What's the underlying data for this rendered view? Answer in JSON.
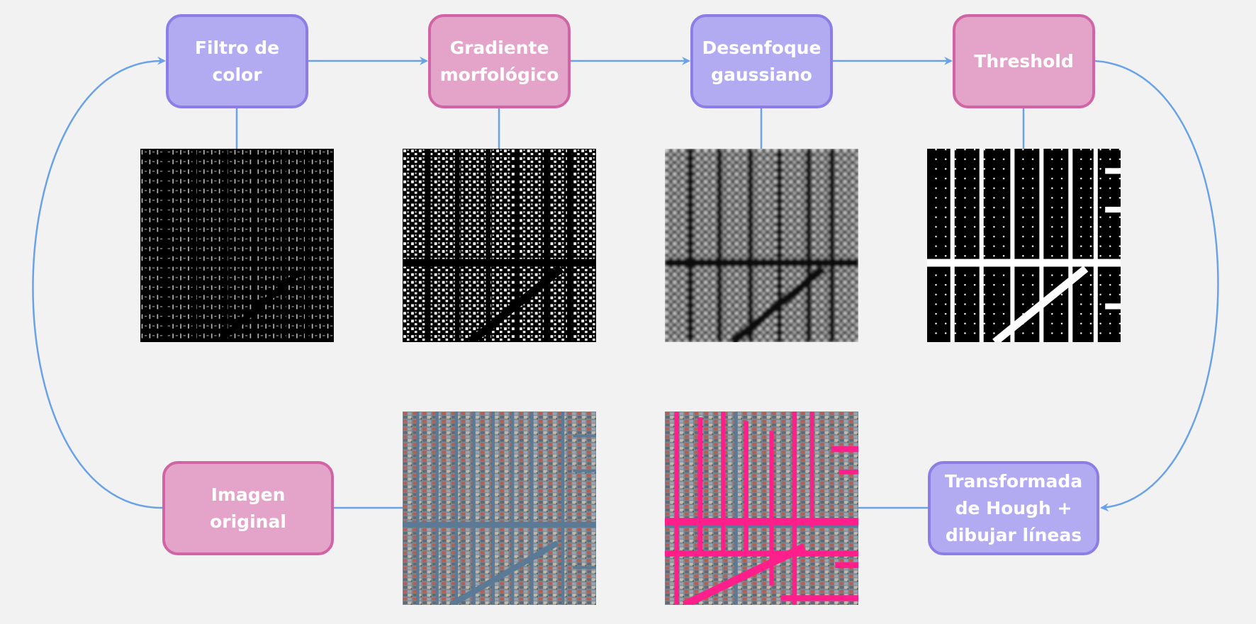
{
  "colors": {
    "background": "#f2f2f2",
    "arrow": "#6aa2e8",
    "purple_fill": "#b2abf2",
    "purple_border": "#8c7ee6",
    "pink_fill": "#e4a3c9",
    "pink_border": "#d064a5",
    "highlight_roads": "#ff1f8a"
  },
  "nodes": {
    "color_filter": "Filtro de\ncolor",
    "morph_gradient": "Gradiente\nmorfológico",
    "gaussian_blur": "Desenfoque\ngaussiano",
    "threshold": "Threshold",
    "hough": "Transformada\nde Hough +\ndibujar líneas",
    "original": "Imagen\noriginal"
  }
}
